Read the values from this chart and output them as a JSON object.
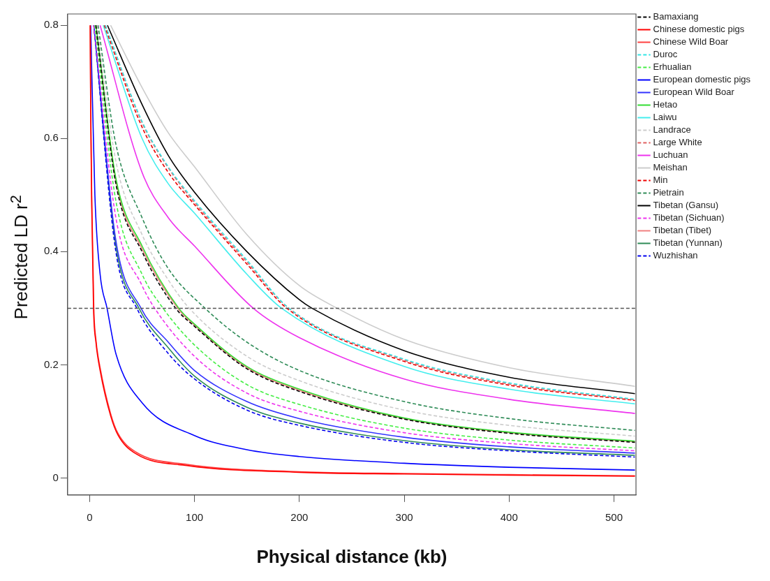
{
  "chart_data": {
    "type": "line",
    "xlabel": "Physical distance (kb)",
    "ylabel": "Predicted LD r$^{2}$",
    "xlim": [
      -21,
      521
    ],
    "ylim": [
      -0.03,
      0.82
    ],
    "xticks": [
      0,
      100,
      200,
      300,
      400,
      500
    ],
    "yticks": [
      0,
      0.2,
      0.4,
      0.6,
      0.8
    ],
    "grid": false,
    "legend": "right",
    "marker": "none",
    "ref_lines": [
      {
        "axis": "y",
        "value": 0.3,
        "color": "#555555",
        "line_style": "dashed"
      }
    ],
    "series": [
      {
        "name": "Bamaxiang",
        "color": "#000000",
        "line_style": "dashed",
        "x": [
          6,
          25,
          50,
          82,
          100,
          150,
          200,
          300,
          400,
          520
        ],
        "values": [
          0.8,
          0.52,
          0.4,
          0.3,
          0.268,
          0.193,
          0.153,
          0.104,
          0.079,
          0.063
        ]
      },
      {
        "name": "Chinese domestic pigs",
        "color": "#ff0000",
        "line_style": "solid",
        "x": [
          0.5,
          1,
          2,
          3.7,
          6,
          10,
          20,
          27,
          44,
          93,
          200,
          300,
          400,
          520
        ],
        "values": [
          0.8,
          0.65,
          0.48,
          0.3,
          0.24,
          0.19,
          0.11,
          0.076,
          0.043,
          0.022,
          0.01,
          0.007,
          0.005,
          0.003
        ]
      },
      {
        "name": "Chinese Wild Boar",
        "color": "#ff4040",
        "line_style": "solid",
        "x": [
          0.6,
          1,
          2,
          4,
          6,
          10,
          20,
          27,
          44,
          93,
          200,
          300,
          400,
          520
        ],
        "values": [
          0.8,
          0.66,
          0.5,
          0.3,
          0.245,
          0.195,
          0.114,
          0.079,
          0.046,
          0.024,
          0.011,
          0.008,
          0.006,
          0.004
        ]
      },
      {
        "name": "Duroc",
        "color": "#33e5e5",
        "line_style": "dashed",
        "x": [
          15,
          50,
          75,
          100,
          150,
          190,
          300,
          400,
          520
        ],
        "values": [
          0.8,
          0.63,
          0.55,
          0.49,
          0.385,
          0.3,
          0.21,
          0.168,
          0.139
        ]
      },
      {
        "name": "Erhualian",
        "color": "#44ee44",
        "line_style": "dashed",
        "x": [
          5,
          25,
          50,
          70,
          100,
          150,
          200,
          300,
          400,
          520
        ],
        "values": [
          0.8,
          0.49,
          0.36,
          0.3,
          0.235,
          0.165,
          0.13,
          0.088,
          0.067,
          0.053
        ]
      },
      {
        "name": "European domestic pigs",
        "color": "#0000ff",
        "line_style": "solid",
        "x": [
          1,
          5,
          10,
          16.6,
          25,
          50,
          100,
          150,
          200,
          300,
          400,
          520
        ],
        "values": [
          0.8,
          0.5,
          0.36,
          0.3,
          0.22,
          0.133,
          0.075,
          0.05,
          0.038,
          0.026,
          0.019,
          0.014
        ]
      },
      {
        "name": "European Wild Boar",
        "color": "#3333ff",
        "line_style": "solid",
        "x": [
          4,
          25,
          49,
          75,
          100,
          150,
          200,
          300,
          400,
          520
        ],
        "values": [
          0.8,
          0.42,
          0.3,
          0.24,
          0.19,
          0.135,
          0.105,
          0.072,
          0.055,
          0.044
        ]
      },
      {
        "name": "Hetao",
        "color": "#33dd33",
        "line_style": "solid",
        "x": [
          6,
          25,
          50,
          85,
          100,
          150,
          200,
          300,
          400,
          520
        ],
        "values": [
          0.8,
          0.53,
          0.41,
          0.3,
          0.272,
          0.197,
          0.157,
          0.106,
          0.081,
          0.065
        ]
      },
      {
        "name": "Laiwu",
        "color": "#44eeee",
        "line_style": "solid",
        "x": [
          13,
          50,
          75,
          100,
          150,
          183,
          300,
          400,
          520
        ],
        "values": [
          0.8,
          0.6,
          0.52,
          0.468,
          0.36,
          0.3,
          0.197,
          0.157,
          0.131
        ]
      },
      {
        "name": "Landrace",
        "color": "#cccccc",
        "line_style": "dashed",
        "x": [
          7,
          25,
          50,
          75,
          95,
          150,
          200,
          300,
          400,
          520
        ],
        "values": [
          0.8,
          0.56,
          0.43,
          0.35,
          0.3,
          0.215,
          0.172,
          0.12,
          0.093,
          0.074
        ]
      },
      {
        "name": "Large White",
        "color": "#e06060",
        "line_style": "dashed",
        "x": [
          15,
          50,
          75,
          100,
          150,
          190,
          300,
          400,
          520
        ],
        "values": [
          0.8,
          0.628,
          0.548,
          0.487,
          0.382,
          0.3,
          0.208,
          0.166,
          0.138
        ]
      },
      {
        "name": "Luchuan",
        "color": "#ee33ee",
        "line_style": "solid",
        "x": [
          10,
          50,
          75,
          100,
          156,
          200,
          300,
          400,
          520
        ],
        "values": [
          0.8,
          0.54,
          0.46,
          0.41,
          0.3,
          0.248,
          0.175,
          0.139,
          0.114
        ]
      },
      {
        "name": "Meishan",
        "color": "#cccccc",
        "line_style": "solid",
        "x": [
          20,
          50,
          75,
          100,
          150,
          200,
          236,
          300,
          400,
          520
        ],
        "values": [
          0.8,
          0.69,
          0.61,
          0.55,
          0.43,
          0.34,
          0.3,
          0.245,
          0.195,
          0.162
        ]
      },
      {
        "name": "Min",
        "color": "#ee0000",
        "line_style": "dashed",
        "x": [
          14,
          50,
          75,
          100,
          150,
          188,
          300,
          400,
          520
        ],
        "values": [
          0.8,
          0.62,
          0.54,
          0.483,
          0.378,
          0.3,
          0.206,
          0.164,
          0.137
        ]
      },
      {
        "name": "Pietrain",
        "color": "#2e8b57",
        "line_style": "dashed",
        "x": [
          8,
          25,
          50,
          75,
          110,
          150,
          200,
          300,
          400,
          520
        ],
        "values": [
          0.8,
          0.59,
          0.46,
          0.37,
          0.3,
          0.24,
          0.19,
          0.135,
          0.105,
          0.084
        ]
      },
      {
        "name": "Tibetan (Gansu)",
        "color": "#000000",
        "line_style": "solid",
        "x": [
          17,
          50,
          75,
          100,
          150,
          200,
          212,
          300,
          400,
          520
        ],
        "values": [
          0.8,
          0.66,
          0.57,
          0.505,
          0.4,
          0.315,
          0.3,
          0.225,
          0.178,
          0.149
        ]
      },
      {
        "name": "Tibetan (Sichuan)",
        "color": "#ee33ee",
        "line_style": "dashed",
        "x": [
          4,
          25,
          50,
          62,
          100,
          150,
          200,
          300,
          400,
          520
        ],
        "values": [
          0.8,
          0.46,
          0.34,
          0.3,
          0.215,
          0.15,
          0.118,
          0.08,
          0.061,
          0.048
        ]
      },
      {
        "name": "Tibetan (Tibet)",
        "color": "#f08080",
        "line_style": "solid",
        "x": [
          6,
          25,
          50,
          84,
          100,
          150,
          200,
          300,
          400,
          520
        ],
        "values": [
          0.8,
          0.525,
          0.405,
          0.3,
          0.27,
          0.195,
          0.155,
          0.105,
          0.08,
          0.064
        ]
      },
      {
        "name": "Tibetan (Yunnan)",
        "color": "#2e8b57",
        "line_style": "solid",
        "x": [
          4,
          25,
          47,
          75,
          100,
          150,
          200,
          300,
          400,
          520
        ],
        "values": [
          0.8,
          0.41,
          0.3,
          0.23,
          0.18,
          0.125,
          0.097,
          0.066,
          0.05,
          0.04
        ]
      },
      {
        "name": "Wuzhishan",
        "color": "#0000ee",
        "line_style": "dashed",
        "x": [
          4,
          25,
          45,
          75,
          100,
          150,
          200,
          300,
          400,
          520
        ],
        "values": [
          0.8,
          0.4,
          0.3,
          0.22,
          0.175,
          0.12,
          0.093,
          0.063,
          0.048,
          0.037
        ]
      }
    ]
  }
}
